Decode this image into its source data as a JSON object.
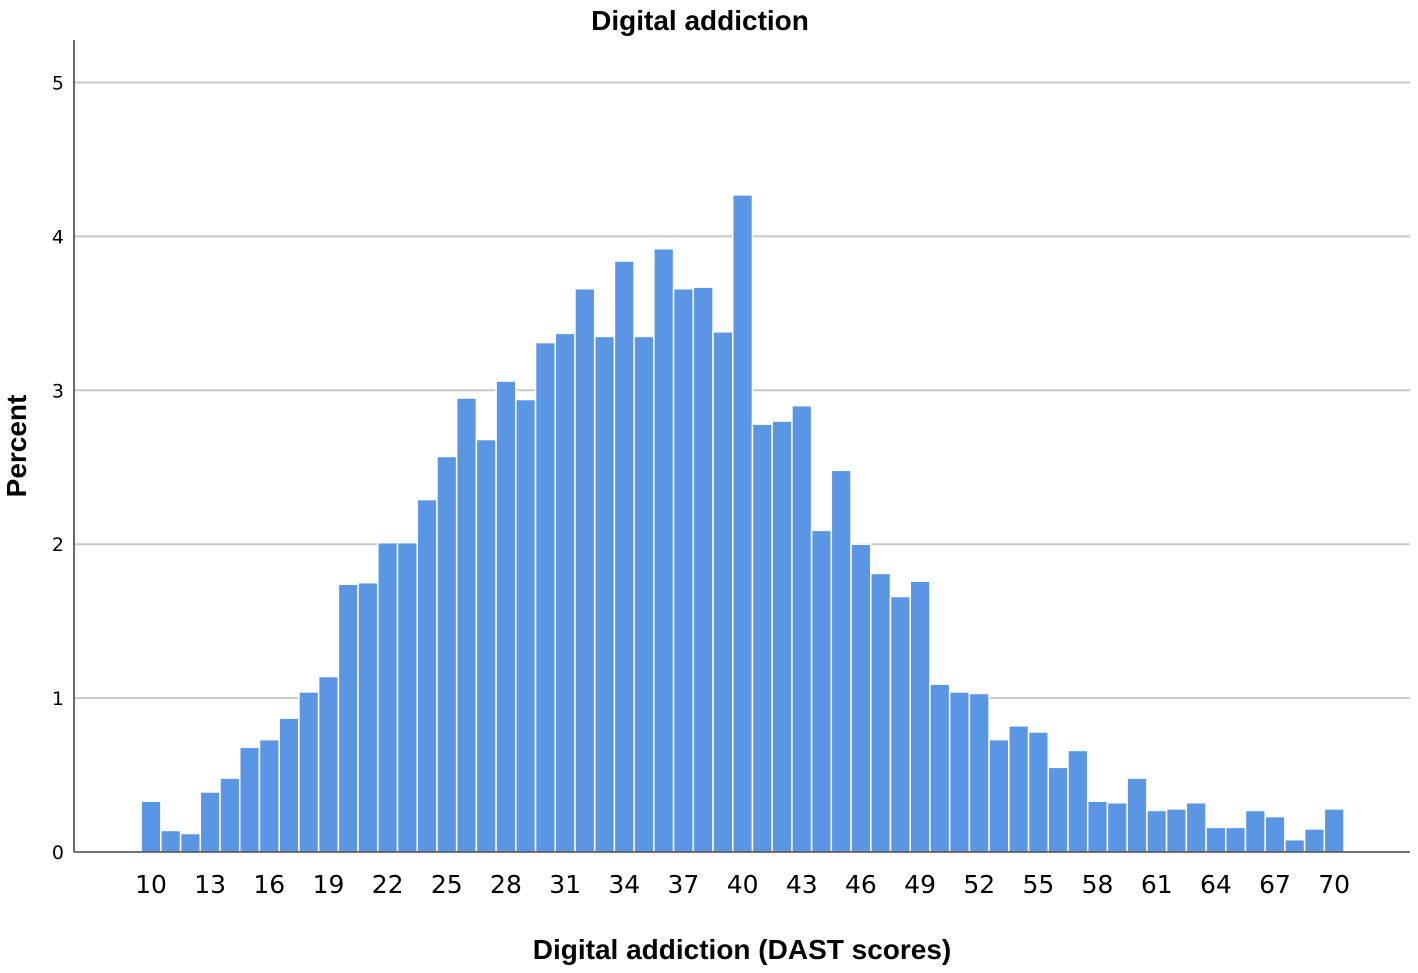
{
  "chart_data": {
    "type": "bar",
    "title": "Digital addiction",
    "xlabel": "Digital addiction (DAST scores)",
    "ylabel": "Percent",
    "ylim": [
      0,
      5
    ],
    "yticks": [
      0,
      1,
      2,
      3,
      4,
      5
    ],
    "xticks": [
      10,
      13,
      16,
      19,
      22,
      25,
      28,
      31,
      34,
      37,
      40,
      43,
      46,
      49,
      52,
      55,
      58,
      61,
      64,
      67,
      70
    ],
    "grid": true,
    "bar_color": "#5a96e3",
    "x": [
      10,
      11,
      12,
      13,
      14,
      15,
      16,
      17,
      18,
      19,
      20,
      21,
      22,
      23,
      24,
      25,
      26,
      27,
      28,
      29,
      30,
      31,
      32,
      33,
      34,
      35,
      36,
      37,
      38,
      39,
      40,
      41,
      42,
      43,
      44,
      45,
      46,
      47,
      48,
      49,
      50,
      51,
      52,
      53,
      54,
      55,
      56,
      57,
      58,
      59,
      60,
      61,
      62,
      63,
      64,
      65,
      66,
      67,
      68,
      69,
      70
    ],
    "values": [
      0.33,
      0.14,
      0.12,
      0.39,
      0.48,
      0.68,
      0.73,
      0.87,
      1.04,
      1.14,
      1.74,
      1.75,
      2.01,
      2.01,
      2.29,
      2.57,
      2.95,
      2.68,
      3.06,
      2.94,
      3.31,
      3.37,
      3.66,
      3.35,
      3.84,
      3.35,
      3.92,
      3.66,
      3.67,
      3.38,
      4.27,
      2.78,
      2.8,
      2.9,
      2.09,
      2.48,
      2.0,
      1.81,
      1.66,
      1.76,
      1.09,
      1.04,
      1.03,
      0.73,
      0.82,
      0.78,
      0.55,
      0.66,
      0.33,
      0.32,
      0.48,
      0.27,
      0.28,
      0.32,
      0.16,
      0.16,
      0.27,
      0.23,
      0.08,
      0.15,
      0.28
    ]
  }
}
